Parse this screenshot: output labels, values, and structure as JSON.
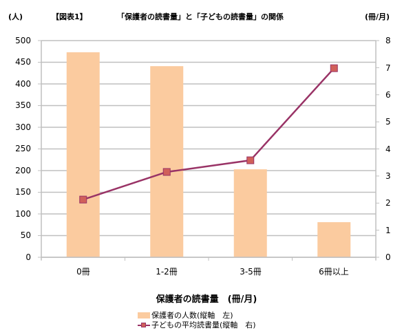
{
  "header": {
    "left_unit": "(人)",
    "figure_label": "【図表1】",
    "title": "「保護者の読書量」と「子どもの読書量」の関係",
    "right_unit": "(冊/月)"
  },
  "axes": {
    "left_ticks": [
      "500",
      "450",
      "400",
      "350",
      "300",
      "250",
      "200",
      "150",
      "100",
      "50",
      "0"
    ],
    "right_ticks": [
      "8",
      "7",
      "6",
      "5",
      "4",
      "3",
      "2",
      "1",
      "0"
    ],
    "x_categories": [
      "0冊",
      "1-2冊",
      "3-5冊",
      "6冊以上"
    ],
    "x_title": "保護者の読書量　(冊/月)"
  },
  "legend": {
    "bar_label": "保護者の人数(縦軸　左)",
    "line_label": "子どもの平均読書量(縦軸　右)"
  },
  "colors": {
    "bar": "#FBCB9F",
    "line": "#993366",
    "marker": "#D0605A",
    "grid": "#BFBFBF"
  },
  "chart_data": {
    "type": "bar+line",
    "title": "【図表1】「保護者の読書量」と「子どもの読書量」の関係",
    "categories": [
      "0冊",
      "1-2冊",
      "3-5冊",
      "6冊以上"
    ],
    "xlabel": "保護者の読書量 (冊/月)",
    "series": [
      {
        "name": "保護者の人数(縦軸 左)",
        "type": "bar",
        "axis": "left",
        "values": [
          473,
          441,
          203,
          81
        ]
      },
      {
        "name": "子どもの平均読書量(縦軸 右)",
        "type": "line",
        "axis": "right",
        "marker": "square",
        "values": [
          2.13,
          3.15,
          3.58,
          6.98
        ]
      }
    ],
    "ylabel_left": "(人)",
    "ylabel_right": "(冊/月)",
    "ylim_left": [
      0,
      500
    ],
    "ylim_right": [
      0,
      8
    ],
    "left_tick_step": 50,
    "right_tick_step": 1,
    "grid": true,
    "legend_position": "bottom"
  }
}
